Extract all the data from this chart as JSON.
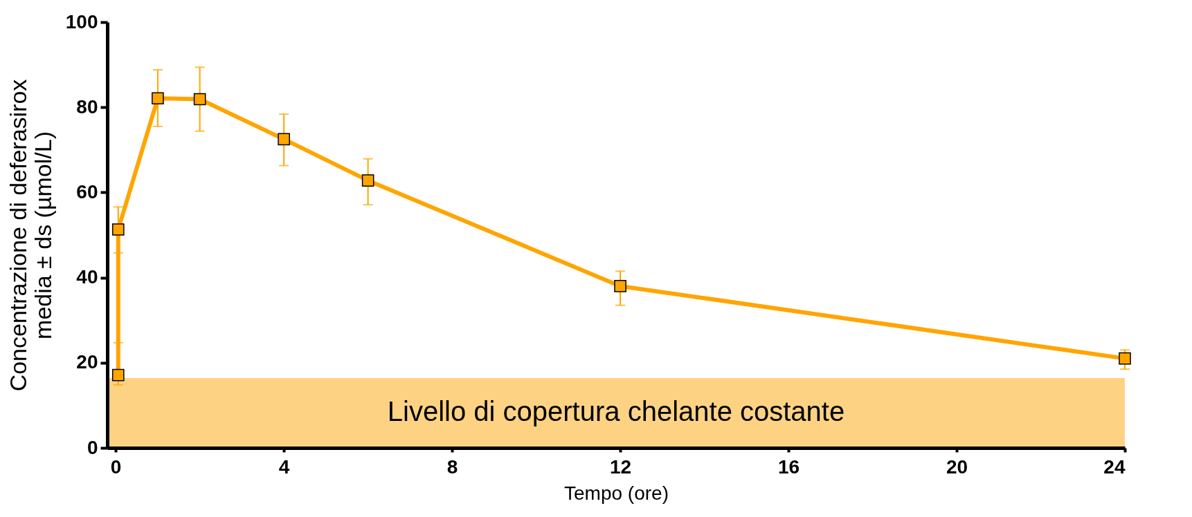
{
  "chart_data": {
    "type": "line",
    "xlabel": "Tempo (ore)",
    "ylabel": "Concentrazione di deferasirox\nmedia ± ds (µmol/L)",
    "x": [
      0.06,
      0.06,
      1,
      2,
      4,
      6,
      12,
      24
    ],
    "series": [
      {
        "color": "#ffa500",
        "values": [
          17.1,
          51.3,
          82.1,
          81.9,
          72.5,
          62.8,
          38,
          21
        ],
        "errors": [
          [
            14.8,
            24.7
          ],
          [
            45.8,
            56.6
          ],
          [
            75.5,
            88.8
          ],
          [
            74.4,
            89.4
          ],
          [
            66.3,
            78.4
          ],
          [
            57.1,
            67.9
          ],
          [
            33.5,
            41.5
          ],
          [
            18.5,
            23
          ]
        ]
      }
    ],
    "xlim": [
      -0.2,
      24
    ],
    "xticks": [
      0,
      4,
      8,
      12,
      16,
      20,
      24
    ],
    "ylim": [
      0,
      100
    ],
    "yticks": [
      0,
      20,
      40,
      60,
      80,
      100
    ],
    "marker": "square",
    "grid": false,
    "bands": [
      {
        "axis": "y",
        "from": 0,
        "to": 16.4,
        "label": "Livello di copertura chelante costante",
        "color": "#fdd383"
      }
    ]
  }
}
